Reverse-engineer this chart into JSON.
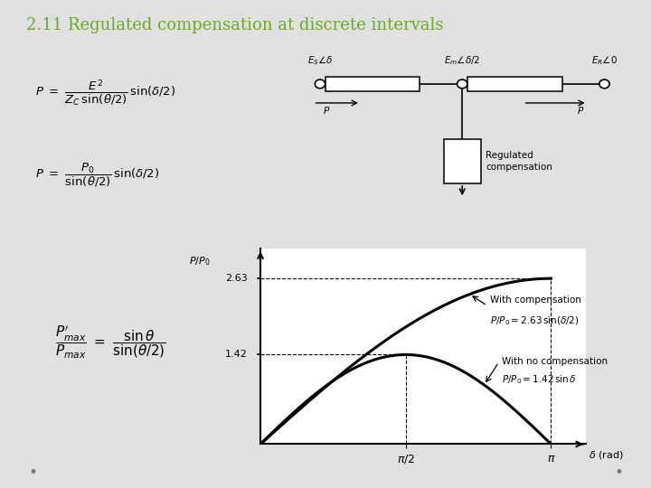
{
  "title": "2.11 Regulated compensation at discrete intervals",
  "title_color": "#6aaa1f",
  "title_fontsize": 13,
  "bg_color": "#e0e0e0",
  "eq1": "$P\\ =\\ \\dfrac{E^2}{Z_C\\,\\sin(\\theta/2)}\\,\\sin(\\delta/2)$",
  "eq2": "$P\\ =\\ \\dfrac{P_0}{\\sin(\\theta/2)}\\,\\sin(\\delta/2)$",
  "eq3": "$\\dfrac{P^\\prime_{max}}{P_{max}}\\ =\\ \\dfrac{\\sin\\theta}{\\sin(\\theta/2)}$",
  "curve1_line1": "With compensation",
  "curve1_line2": "$P/P_0 = 2.63\\,\\sin(\\delta/2)$",
  "curve2_line1": "With no compensation",
  "curve2_line2": "$P/P_0 = 1.42\\,\\sin\\delta$",
  "y_max_comp": 2.63,
  "y_max_nocomp": 1.42,
  "xlabel": "$\\delta$ (rad)",
  "ylabel": "$P/P_0$",
  "label_263": "2.63",
  "label_142": "1.42",
  "tick_pi2": "$\\pi/2$",
  "tick_pi": "$\\pi$",
  "circ_label_s": "$E_S\\angle\\delta$",
  "circ_label_m": "$E_m\\angle\\delta/2$",
  "circ_label_r": "$E_R\\angle 0$",
  "reg_comp_label": "Regulated\ncompensation"
}
